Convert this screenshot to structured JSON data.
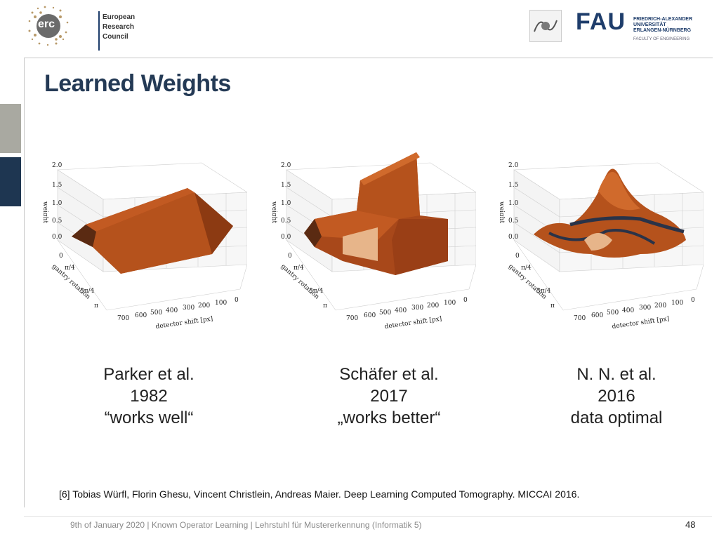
{
  "header": {
    "erc_logo_mark": "erc",
    "erc_logo_lines": [
      "European",
      "Research",
      "Council"
    ],
    "fau_logo_mark": "FAU",
    "fau_logo_lines": [
      "FRIEDRICH-ALEXANDER",
      "UNIVERSITÄT",
      "ERLANGEN-NÜRNBERG"
    ],
    "fau_faculty": "FACULTY OF ENGINEERING"
  },
  "slide": {
    "title": "Learned Weights",
    "plots": [
      {
        "ylabel": "weight",
        "zticks": [
          "0.0",
          "0.5",
          "1.0",
          "1.5",
          "2.0"
        ],
        "gantry_label": "gantry rotation",
        "gantry_ticks": [
          "0",
          "π/4",
          "3π/4",
          "π"
        ],
        "detector_label": "detector shift [px]",
        "detector_ticks": [
          "700",
          "600",
          "500",
          "400",
          "300",
          "200",
          "100",
          "0"
        ]
      },
      {
        "ylabel": "weight",
        "zticks": [
          "0.0",
          "0.5",
          "1.0",
          "1.5",
          "2.0"
        ],
        "gantry_label": "gantry rotation",
        "gantry_ticks": [
          "0",
          "π/4",
          "3π/4",
          "π"
        ],
        "detector_label": "detector shift [px]",
        "detector_ticks": [
          "700",
          "600",
          "500",
          "400",
          "300",
          "200",
          "100",
          "0"
        ]
      },
      {
        "ylabel": "weight",
        "zticks": [
          "0.0",
          "0.5",
          "1.0",
          "1.5",
          "2.0"
        ],
        "gantry_label": "gantry rotation",
        "gantry_ticks": [
          "0",
          "π/4",
          "3π/4",
          "π"
        ],
        "detector_label": "detector shift [px]",
        "detector_ticks": [
          "700",
          "600",
          "500",
          "400",
          "300",
          "200",
          "100",
          "0"
        ]
      }
    ],
    "captions": [
      {
        "line1": "Parker et al.",
        "line2": "1982",
        "line3": "“works well“"
      },
      {
        "line1": "Schäfer et al.",
        "line2": "2017",
        "line3": "„works better“"
      },
      {
        "line1": "N. N. et al.",
        "line2": "2016",
        "line3": "data optimal"
      }
    ],
    "reference": "[6] Tobias Würfl, Florin Ghesu, Vincent Christlein, Andreas Maier. Deep Learning Computed Tomography. MICCAI 2016."
  },
  "footer": {
    "text": "9th of January 2020  |  Known Operator Learning  |   Lehrstuhl für Mustererkennung (Informatik 5)",
    "page_number": "48"
  },
  "colors": {
    "surface": "#b5521c",
    "surface_dark": "#7a3210",
    "title": "#243a55",
    "accent": "#1e3d6b"
  }
}
